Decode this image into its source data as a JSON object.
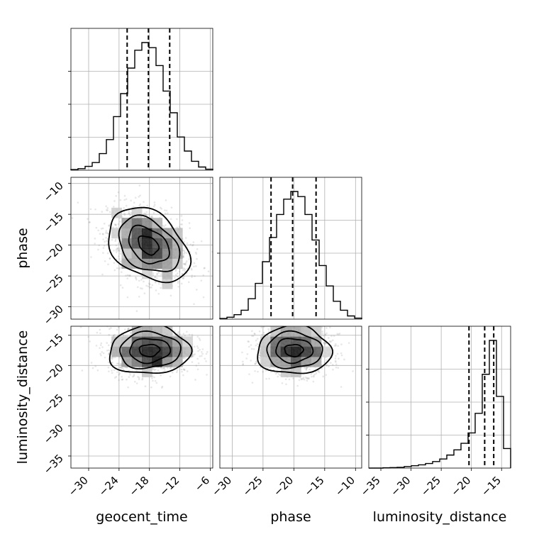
{
  "chart_data": {
    "type": "corner",
    "parameters": [
      "geocent_time",
      "phase",
      "luminosity_distance"
    ],
    "ranges": {
      "geocent_time": [
        -33.5,
        -5.5
      ],
      "phase": [
        -32.0,
        -9.0
      ],
      "luminosity_distance": [
        -37.0,
        -13.5
      ]
    },
    "ticks": {
      "geocent_time": [
        -30,
        -24,
        -18,
        -12,
        -6
      ],
      "phase": [
        -30,
        -25,
        -20,
        -15,
        -10
      ],
      "luminosity_distance": [
        -35,
        -30,
        -25,
        -20,
        -15
      ]
    },
    "tick_labels": {
      "geocent_time": [
        "−30",
        "−24",
        "−18",
        "−12",
        "−6"
      ],
      "phase": [
        "−30",
        "−25",
        "−20",
        "−15",
        "−10"
      ],
      "luminosity_distance": [
        "−35",
        "−30",
        "−25",
        "−20",
        "−15"
      ]
    },
    "histograms": {
      "geocent_time": {
        "bin_edges": [
          -33.5,
          -32.1,
          -30.7,
          -29.3,
          -27.9,
          -26.5,
          -25.1,
          -23.7,
          -22.3,
          -20.9,
          -19.5,
          -18.1,
          -16.7,
          -15.3,
          -13.9,
          -12.5,
          -11.1,
          -9.7,
          -8.3,
          -6.9,
          -5.5
        ],
        "counts": [
          0.005,
          0.012,
          0.03,
          0.06,
          0.13,
          0.24,
          0.42,
          0.6,
          0.8,
          0.94,
          1.0,
          0.96,
          0.82,
          0.62,
          0.45,
          0.26,
          0.15,
          0.07,
          0.025,
          0.008
        ],
        "quantiles": [
          -22.4,
          -18.2,
          -14.0
        ]
      },
      "phase": {
        "bin_edges": [
          -32.0,
          -30.85,
          -29.7,
          -28.55,
          -27.4,
          -26.25,
          -25.1,
          -23.95,
          -22.8,
          -21.65,
          -20.5,
          -19.35,
          -18.2,
          -17.05,
          -15.9,
          -14.75,
          -13.6,
          -12.45,
          -11.3,
          -10.15,
          -9.0
        ],
        "counts": [
          0.005,
          0.015,
          0.035,
          0.07,
          0.16,
          0.28,
          0.45,
          0.64,
          0.82,
          0.94,
          1.0,
          0.96,
          0.82,
          0.62,
          0.42,
          0.26,
          0.14,
          0.07,
          0.025,
          0.008
        ],
        "quantiles": [
          -23.7,
          -20.2,
          -16.4
        ]
      },
      "luminosity_distance": {
        "bin_edges": [
          -37.0,
          -35.825,
          -34.65,
          -33.475,
          -32.3,
          -31.125,
          -29.95,
          -28.775,
          -27.6,
          -26.425,
          -25.25,
          -24.075,
          -22.9,
          -21.725,
          -20.55,
          -19.375,
          -18.2,
          -17.025,
          -15.85,
          -14.675,
          -13.5
        ],
        "counts": [
          0.0,
          0.0,
          0.002,
          0.004,
          0.006,
          0.012,
          0.018,
          0.025,
          0.035,
          0.05,
          0.07,
          0.1,
          0.14,
          0.19,
          0.27,
          0.42,
          0.72,
          0.98,
          0.55,
          0.15
        ],
        "quantiles": [
          -20.4,
          -17.8,
          -16.3
        ]
      }
    },
    "pairs": [
      {
        "x": "geocent_time",
        "y": "phase",
        "center": [
          -18.2,
          -20.0
        ],
        "sigma": [
          4.0,
          3.0
        ],
        "correlation": -0.35
      },
      {
        "x": "geocent_time",
        "y": "luminosity_distance",
        "center": [
          -18.0,
          -17.5
        ],
        "sigma": [
          4.0,
          2.0
        ],
        "correlation": 0.05
      },
      {
        "x": "phase",
        "y": "luminosity_distance",
        "center": [
          -20.0,
          -17.5
        ],
        "sigma": [
          3.0,
          2.0
        ],
        "correlation": 0.0
      }
    ],
    "contour_levels_sigma": [
      0.5,
      1.0,
      1.5,
      2.0
    ],
    "grid": true
  }
}
